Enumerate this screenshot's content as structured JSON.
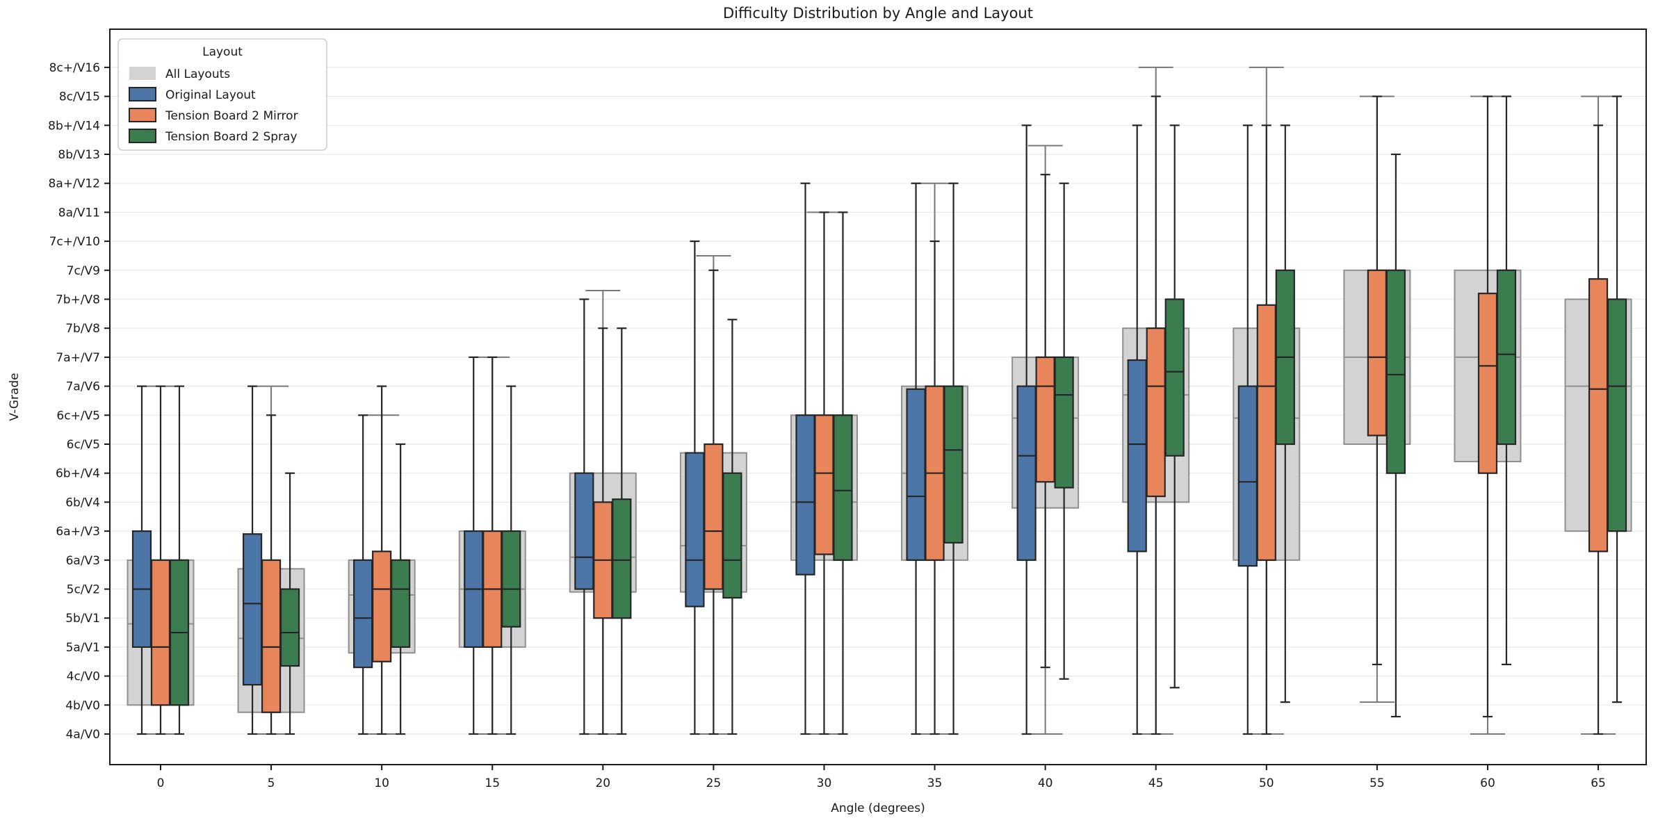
{
  "chart_data": {
    "type": "grouped_boxplot",
    "title": "Difficulty Distribution by Angle and Layout",
    "xlabel": "Angle (degrees)",
    "ylabel": "V-Grade",
    "angles": [
      0,
      5,
      10,
      15,
      20,
      25,
      30,
      35,
      40,
      45,
      50,
      55,
      60,
      65
    ],
    "grade_labels": [
      "4a/V0",
      "4b/V0",
      "4c/V0",
      "5a/V1",
      "5b/V1",
      "5c/V2",
      "6a/V3",
      "6a+/V3",
      "6b/V4",
      "6b+/V4",
      "6c/V5",
      "6c+/V5",
      "7a/V6",
      "7a+/V7",
      "7b/V8",
      "7b+/V8",
      "7c/V9",
      "7c+/V10",
      "8a/V11",
      "8a+/V12",
      "8b/V13",
      "8b+/V14",
      "8c/V15",
      "8c+/V16"
    ],
    "grid": true,
    "ylim_grades": [
      0,
      23
    ],
    "legend": {
      "title": "Layout",
      "position": "upper left",
      "entries": [
        {
          "label": "All Layouts",
          "color": "#d3d3d3"
        },
        {
          "label": "Original Layout",
          "color": "#4d76a8"
        },
        {
          "label": "Tension Board 2 Mirror",
          "color": "#e8855a"
        },
        {
          "label": "Tension Board 2 Spray",
          "color": "#3c7d50"
        }
      ]
    },
    "box_format": "[whisker_low, q1, median, q3, whisker_high] in grade-index units (0 = 4a/V0 ... 23 = 8c+/V16)",
    "series": [
      {
        "name": "All Layouts",
        "fill": "#d3d3d3",
        "edge": "#8f8f8f",
        "line": "#777777",
        "wide": true,
        "boxes": [
          {
            "angle": 0,
            "v": [
              0,
              1.0,
              3.8,
              6.0,
              12.0
            ]
          },
          {
            "angle": 5,
            "v": [
              0,
              0.75,
              3.3,
              5.7,
              12.0
            ]
          },
          {
            "angle": 10,
            "v": [
              0,
              2.8,
              4.8,
              6.0,
              11.0
            ]
          },
          {
            "angle": 15,
            "v": [
              0,
              3.0,
              5.0,
              7.0,
              13.0
            ]
          },
          {
            "angle": 20,
            "v": [
              0,
              4.9,
              6.1,
              9.0,
              15.3
            ]
          },
          {
            "angle": 25,
            "v": [
              0,
              4.9,
              6.5,
              9.7,
              16.5
            ]
          },
          {
            "angle": 30,
            "v": [
              0,
              6.0,
              8.0,
              11.0,
              18.0
            ]
          },
          {
            "angle": 35,
            "v": [
              0,
              6.0,
              9.0,
              12.0,
              19.0
            ]
          },
          {
            "angle": 40,
            "v": [
              0,
              7.8,
              10.9,
              13.0,
              20.3
            ]
          },
          {
            "angle": 45,
            "v": [
              0,
              8.0,
              11.7,
              14.0,
              23.0
            ]
          },
          {
            "angle": 50,
            "v": [
              0,
              6.0,
              10.9,
              14.0,
              23.0
            ]
          },
          {
            "angle": 55,
            "v": [
              1.1,
              10.0,
              13.0,
              16.0,
              22.0
            ]
          },
          {
            "angle": 60,
            "v": [
              0,
              9.4,
              13.0,
              16.0,
              22.0
            ]
          },
          {
            "angle": 65,
            "v": [
              0,
              7.0,
              12.0,
              15.0,
              22.0
            ]
          }
        ]
      },
      {
        "name": "Original Layout",
        "fill": "#4d76a8",
        "edge": "#262626",
        "line": "#262626",
        "wide": false,
        "boxes": [
          {
            "angle": 0,
            "v": [
              0,
              3.0,
              5.0,
              7.0,
              12.0
            ]
          },
          {
            "angle": 5,
            "v": [
              0,
              1.7,
              4.5,
              6.9,
              12.0
            ]
          },
          {
            "angle": 10,
            "v": [
              0,
              2.3,
              4.0,
              6.0,
              11.0
            ]
          },
          {
            "angle": 15,
            "v": [
              0,
              3.0,
              5.0,
              7.0,
              13.0
            ]
          },
          {
            "angle": 20,
            "v": [
              0,
              5.0,
              6.1,
              9.0,
              15.0
            ]
          },
          {
            "angle": 25,
            "v": [
              0,
              4.4,
              6.0,
              9.7,
              17.0
            ]
          },
          {
            "angle": 30,
            "v": [
              0,
              5.5,
              8.0,
              11.0,
              19.0
            ]
          },
          {
            "angle": 35,
            "v": [
              0,
              6.0,
              8.2,
              11.9,
              19.0
            ]
          },
          {
            "angle": 40,
            "v": [
              0,
              6.0,
              9.6,
              12.0,
              21.0
            ]
          },
          {
            "angle": 45,
            "v": [
              0,
              6.3,
              10.0,
              12.9,
              21.0
            ]
          },
          {
            "angle": 50,
            "v": [
              0,
              5.8,
              8.7,
              12.0,
              21.0
            ]
          }
        ]
      },
      {
        "name": "Tension Board 2 Mirror",
        "fill": "#e8855a",
        "edge": "#262626",
        "line": "#262626",
        "wide": false,
        "boxes": [
          {
            "angle": 0,
            "v": [
              0,
              1.0,
              3.0,
              6.0,
              12.0
            ]
          },
          {
            "angle": 5,
            "v": [
              0,
              0.75,
              3.0,
              6.0,
              11.0
            ]
          },
          {
            "angle": 10,
            "v": [
              0,
              2.5,
              5.0,
              6.3,
              12.0
            ]
          },
          {
            "angle": 15,
            "v": [
              0,
              3.0,
              5.0,
              7.0,
              13.0
            ]
          },
          {
            "angle": 20,
            "v": [
              0,
              4.0,
              6.0,
              8.0,
              14.0
            ]
          },
          {
            "angle": 25,
            "v": [
              0,
              5.0,
              7.0,
              10.0,
              16.0
            ]
          },
          {
            "angle": 30,
            "v": [
              0,
              6.2,
              9.0,
              11.0,
              18.0
            ]
          },
          {
            "angle": 35,
            "v": [
              0,
              6.0,
              9.0,
              12.0,
              17.0
            ]
          },
          {
            "angle": 40,
            "v": [
              2.3,
              8.7,
              12.0,
              13.0,
              19.3
            ]
          },
          {
            "angle": 45,
            "v": [
              0,
              8.2,
              12.0,
              14.0,
              22.0
            ]
          },
          {
            "angle": 50,
            "v": [
              0,
              6.0,
              12.0,
              14.8,
              21.0
            ]
          },
          {
            "angle": 55,
            "v": [
              2.4,
              10.3,
              13.0,
              16.0,
              22.0
            ]
          },
          {
            "angle": 60,
            "v": [
              0.6,
              9.0,
              12.7,
              15.2,
              22.0
            ]
          },
          {
            "angle": 65,
            "v": [
              0,
              6.3,
              11.9,
              15.7,
              21.0
            ]
          }
        ]
      },
      {
        "name": "Tension Board 2 Spray",
        "fill": "#3c7d50",
        "edge": "#262626",
        "line": "#262626",
        "wide": false,
        "boxes": [
          {
            "angle": 0,
            "v": [
              0,
              1.0,
              3.5,
              6.0,
              12.0
            ]
          },
          {
            "angle": 5,
            "v": [
              0,
              2.35,
              3.5,
              5.0,
              9.0
            ]
          },
          {
            "angle": 10,
            "v": [
              0,
              3.0,
              5.0,
              6.0,
              10.0
            ]
          },
          {
            "angle": 15,
            "v": [
              0,
              3.7,
              5.0,
              7.0,
              12.0
            ]
          },
          {
            "angle": 20,
            "v": [
              0,
              4.0,
              6.0,
              8.1,
              14.0
            ]
          },
          {
            "angle": 25,
            "v": [
              0,
              4.7,
              6.0,
              9.0,
              14.3
            ]
          },
          {
            "angle": 30,
            "v": [
              0,
              6.0,
              8.4,
              11.0,
              18.0
            ]
          },
          {
            "angle": 35,
            "v": [
              0,
              6.6,
              9.8,
              12.0,
              19.0
            ]
          },
          {
            "angle": 40,
            "v": [
              1.9,
              8.5,
              11.7,
              13.0,
              19.0
            ]
          },
          {
            "angle": 45,
            "v": [
              1.6,
              9.6,
              12.5,
              15.0,
              21.0
            ]
          },
          {
            "angle": 50,
            "v": [
              1.1,
              10.0,
              13.0,
              16.0,
              21.0
            ]
          },
          {
            "angle": 55,
            "v": [
              0.6,
              9.0,
              12.4,
              16.0,
              20.0
            ]
          },
          {
            "angle": 60,
            "v": [
              2.4,
              10.0,
              13.1,
              16.0,
              22.0
            ]
          },
          {
            "angle": 65,
            "v": [
              1.1,
              7.0,
              12.0,
              15.0,
              22.0
            ]
          }
        ]
      }
    ]
  }
}
